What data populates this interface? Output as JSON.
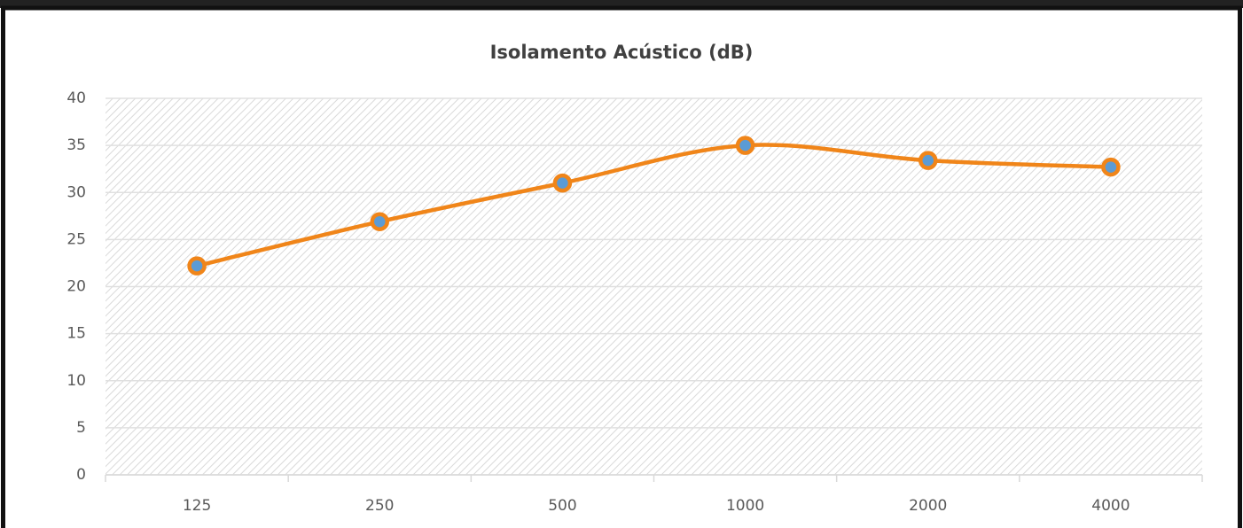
{
  "chart_data": {
    "type": "line",
    "title": "Isolamento Acústico (dB)",
    "categories": [
      "125",
      "250",
      "500",
      "1000",
      "2000",
      "4000"
    ],
    "values": [
      22.2,
      26.9,
      31.0,
      35.0,
      33.4,
      32.7
    ],
    "color": "#f08519",
    "marker_color": "#5b9bd5",
    "smooth": true,
    "ylim": [
      0,
      40
    ],
    "yticks": [
      0,
      5,
      10,
      15,
      20,
      25,
      30,
      35,
      40
    ],
    "grid": true
  }
}
